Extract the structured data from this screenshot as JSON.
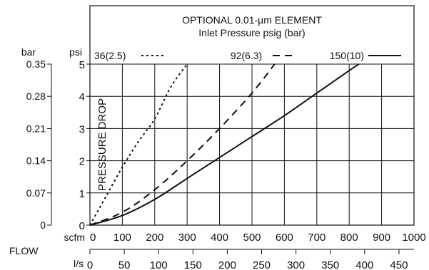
{
  "chart_data": {
    "type": "line",
    "title": "OPTIONAL 0.01-µm ELEMENT",
    "subtitle": "Inlet Pressure psig (bar)",
    "xlabel": "FLOW",
    "ylabel": "PRESSURE DROP",
    "x_unit_primary": "scfm",
    "x_unit_secondary": "l/s",
    "y_unit_primary": "psi",
    "y_unit_secondary": "bar",
    "xlim": [
      0,
      1000
    ],
    "ylim": [
      0,
      5
    ],
    "x_ticks_scfm": [
      0,
      100,
      200,
      300,
      400,
      500,
      600,
      700,
      800,
      900,
      1000
    ],
    "x_ticks_ls": [
      0,
      50,
      100,
      150,
      200,
      250,
      300,
      350,
      400,
      450
    ],
    "y_ticks_psi": [
      0,
      1,
      2,
      3,
      4,
      5
    ],
    "y_ticks_bar": [
      0,
      0.07,
      0.14,
      0.21,
      0.28,
      0.35
    ],
    "grid": true,
    "legend_position": "top",
    "series": [
      {
        "name": "36(2.5)",
        "dash": "dotted",
        "x": [
          0,
          50,
          100,
          150,
          200,
          250,
          300
        ],
        "y": [
          0,
          0.9,
          1.8,
          2.6,
          3.3,
          4.3,
          5.0
        ]
      },
      {
        "name": "92(6.3)",
        "dash": "dashed",
        "x": [
          0,
          100,
          200,
          300,
          400,
          500,
          570
        ],
        "y": [
          0,
          0.4,
          1.1,
          2.0,
          3.0,
          4.1,
          5.0
        ]
      },
      {
        "name": "150(10)",
        "dash": "solid",
        "x": [
          0,
          100,
          200,
          300,
          400,
          500,
          600,
          700,
          800,
          830
        ],
        "y": [
          0,
          0.3,
          0.8,
          1.45,
          2.1,
          2.75,
          3.4,
          4.1,
          4.8,
          5.0
        ]
      }
    ]
  }
}
